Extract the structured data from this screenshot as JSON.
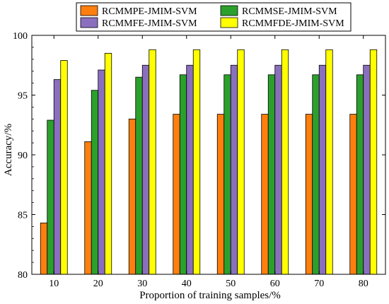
{
  "chart_data": {
    "type": "bar",
    "title": "",
    "xlabel": "Proportion of training samples/%",
    "ylabel": "Accuracy/%",
    "ylim": [
      80,
      100
    ],
    "yticks": [
      80,
      85,
      90,
      95,
      100
    ],
    "categories": [
      "10",
      "20",
      "30",
      "40",
      "50",
      "60",
      "70",
      "80"
    ],
    "grid": false,
    "legend_position": "top",
    "series": [
      {
        "name": "RCMMPE-JMIM-SVM",
        "color": "#FF7F0E",
        "values": [
          84.3,
          91.1,
          93.0,
          93.4,
          93.4,
          93.4,
          93.4,
          93.4
        ]
      },
      {
        "name": "RCMMSE-JMIM-SVM",
        "color": "#2CA02C",
        "values": [
          92.9,
          95.4,
          96.5,
          96.7,
          96.7,
          96.7,
          96.7,
          96.7
        ]
      },
      {
        "name": "RCMMFE-JMIM-SVM",
        "color": "#8B6FBF",
        "values": [
          96.3,
          97.1,
          97.5,
          97.5,
          97.5,
          97.5,
          97.5,
          97.5
        ]
      },
      {
        "name": "RCMMFDE-JMIM-SVM",
        "color": "#FFFF00",
        "values": [
          97.9,
          98.5,
          98.8,
          98.8,
          98.8,
          98.8,
          98.8,
          98.8
        ]
      }
    ]
  }
}
